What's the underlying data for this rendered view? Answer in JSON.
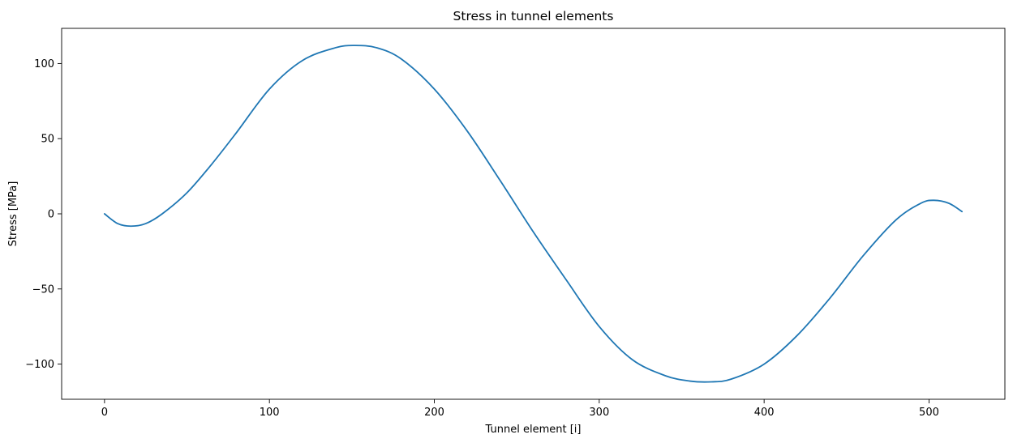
{
  "chart_data": {
    "type": "line",
    "title": "Stress in tunnel elements",
    "xlabel": "Tunnel element [i]",
    "ylabel": "Stress [MPa]",
    "xlim": [
      -26,
      546
    ],
    "ylim": [
      -123.4,
      123.4
    ],
    "x_ticks": [
      0,
      100,
      200,
      300,
      400,
      500
    ],
    "x_tick_labels": [
      "0",
      "100",
      "200",
      "300",
      "400",
      "500"
    ],
    "y_ticks": [
      -100,
      -50,
      0,
      50,
      100
    ],
    "y_tick_labels": [
      "−100",
      "−50",
      "0",
      "50",
      "100"
    ],
    "grid": false,
    "legend": "none",
    "series": [
      {
        "color": "#1f77b4",
        "x": [
          0,
          8,
          16,
          25,
          35,
          50,
          65,
          80,
          100,
          120,
          140,
          152,
          165,
          180,
          200,
          220,
          240,
          260,
          280,
          300,
          320,
          340,
          355,
          368,
          380,
          400,
          420,
          440,
          460,
          480,
          495,
          503,
          512,
          520
        ],
        "y": [
          0,
          -6.5,
          -8.2,
          -6.5,
          0,
          14,
          33,
          54,
          83,
          102,
          110.5,
          112,
          110.5,
          103,
          83,
          55,
          22,
          -12,
          -44,
          -75,
          -97,
          -107.7,
          -111.3,
          -111.8,
          -110,
          -100,
          -81,
          -56,
          -28,
          -4,
          7,
          9,
          7,
          1.5
        ]
      }
    ]
  }
}
